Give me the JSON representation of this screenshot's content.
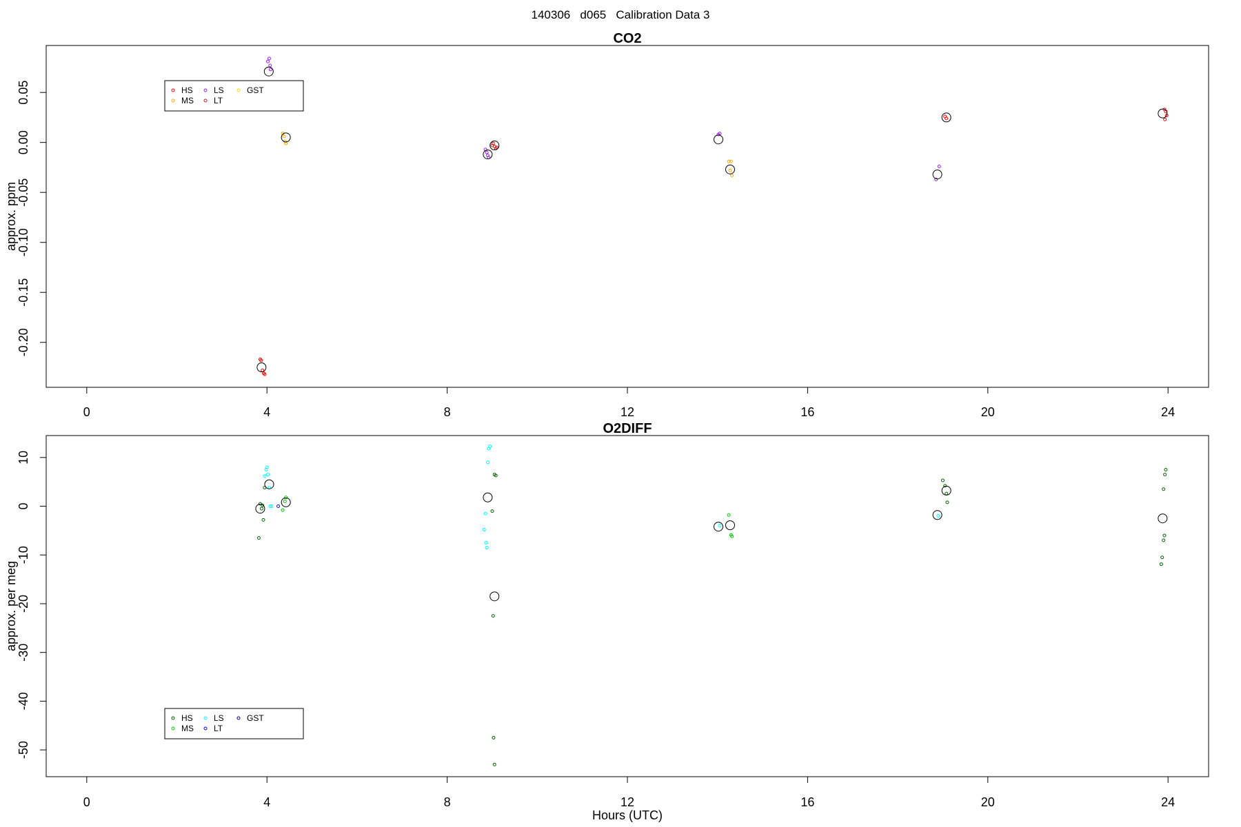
{
  "figure_title": "140306   d065   Calibration Data 3",
  "chart_data": [
    {
      "type": "scatter",
      "title": "CO2",
      "xlabel": "",
      "ylabel": "approx. ppm",
      "xlim": [
        -0.9,
        24.9
      ],
      "ylim": [
        -0.245,
        0.097
      ],
      "x_ticks": [
        0,
        4,
        8,
        12,
        16,
        20,
        24
      ],
      "y_ticks": [
        -0.2,
        -0.15,
        -0.1,
        -0.05,
        0.0,
        0.05
      ],
      "y_tick_labels": [
        "-0.20",
        "-0.15",
        "-0.10",
        "-0.05",
        "0.00",
        "0.05"
      ],
      "legend": {
        "placement": "top-left",
        "entries": [
          {
            "name": "HS",
            "color": "#ff0000"
          },
          {
            "name": "MS",
            "color": "#ffa500"
          },
          {
            "name": "LS",
            "color": "#a020f0"
          },
          {
            "name": "LT",
            "color": "#b22222"
          },
          {
            "name": "GST",
            "color": "#ffd700"
          }
        ]
      },
      "series": [
        {
          "name": "HS",
          "color": "#ff0000",
          "points": [
            [
              3.85,
              -0.217
            ],
            [
              3.87,
              -0.218
            ],
            [
              3.9,
              -0.228
            ],
            [
              3.93,
              -0.231
            ],
            [
              3.95,
              -0.232
            ],
            [
              9.02,
              -0.001
            ],
            [
              9.05,
              -0.004
            ],
            [
              9.08,
              -0.006
            ],
            [
              19.05,
              0.026
            ],
            [
              19.08,
              0.024
            ],
            [
              23.92,
              0.033
            ],
            [
              23.95,
              0.031
            ],
            [
              23.97,
              0.027
            ],
            [
              23.93,
              0.023
            ]
          ]
        },
        {
          "name": "MS",
          "color": "#ffa500",
          "points": [
            [
              4.35,
              0.009
            ],
            [
              4.38,
              0.006
            ],
            [
              4.4,
              0.001
            ],
            [
              4.42,
              -0.001
            ],
            [
              14.25,
              -0.019
            ],
            [
              14.3,
              -0.019
            ],
            [
              14.28,
              -0.028
            ],
            [
              14.32,
              -0.033
            ]
          ]
        },
        {
          "name": "LS",
          "color": "#a020f0",
          "points": [
            [
              4.02,
              0.081
            ],
            [
              4.05,
              0.084
            ],
            [
              4.07,
              0.077
            ],
            [
              4.08,
              0.073
            ],
            [
              8.85,
              -0.007
            ],
            [
              8.88,
              -0.01
            ],
            [
              8.9,
              -0.013
            ],
            [
              8.92,
              -0.015
            ],
            [
              14.02,
              0.008
            ],
            [
              14.05,
              0.009
            ],
            [
              18.85,
              -0.037
            ],
            [
              18.92,
              -0.024
            ]
          ]
        },
        {
          "name": "LT",
          "color": "#b22222",
          "points": [
            [
              9.0,
              -0.003
            ],
            [
              9.1,
              -0.005
            ]
          ]
        },
        {
          "name": "GST",
          "color": "#ffd700",
          "points": []
        },
        {
          "name": "",
          "color": "#000000",
          "marker": "mean",
          "points": [
            [
              3.88,
              -0.225
            ],
            [
              4.04,
              0.071
            ],
            [
              4.42,
              0.005
            ],
            [
              8.9,
              -0.012
            ],
            [
              9.05,
              -0.003
            ],
            [
              14.02,
              0.003
            ],
            [
              14.28,
              -0.027
            ],
            [
              18.88,
              -0.032
            ],
            [
              19.08,
              0.025
            ],
            [
              23.88,
              0.029
            ]
          ]
        }
      ]
    },
    {
      "type": "scatter",
      "title": "O2DIFF",
      "xlabel": "Hours (UTC)",
      "ylabel": "approx. per meg",
      "xlim": [
        -0.9,
        24.9
      ],
      "ylim": [
        -55.5,
        14.5
      ],
      "x_ticks": [
        0,
        4,
        8,
        12,
        16,
        20,
        24
      ],
      "y_ticks": [
        -50,
        -40,
        -30,
        -20,
        -10,
        0,
        10
      ],
      "y_tick_labels": [
        "-50",
        "-40",
        "-30",
        "-20",
        "-10",
        "0",
        "10"
      ],
      "legend": {
        "placement": "bottom-left",
        "entries": [
          {
            "name": "HS",
            "color": "#006400"
          },
          {
            "name": "MS",
            "color": "#00cc00"
          },
          {
            "name": "LS",
            "color": "#00ffff"
          },
          {
            "name": "LT",
            "color": "#0000ff"
          },
          {
            "name": "GST",
            "color": "#00008b"
          }
        ]
      },
      "series": [
        {
          "name": "HS",
          "color": "#006400",
          "points": [
            [
              3.82,
              -6.5
            ],
            [
              3.85,
              0.5
            ],
            [
              3.88,
              -0.5
            ],
            [
              3.9,
              0.2
            ],
            [
              3.92,
              -2.8
            ],
            [
              3.95,
              3.8
            ],
            [
              9.0,
              -1.0
            ],
            [
              9.05,
              6.5
            ],
            [
              9.08,
              6.3
            ],
            [
              9.02,
              -22.5
            ],
            [
              9.03,
              -47.5
            ],
            [
              9.05,
              -53.0
            ],
            [
              19.0,
              5.3
            ],
            [
              19.05,
              4.2
            ],
            [
              19.08,
              2.6
            ],
            [
              19.1,
              0.8
            ],
            [
              23.85,
              -11.9
            ],
            [
              23.87,
              -10.5
            ],
            [
              23.9,
              -7.0
            ],
            [
              23.92,
              -6.0
            ],
            [
              23.95,
              7.5
            ],
            [
              23.93,
              6.5
            ],
            [
              23.9,
              3.5
            ]
          ]
        },
        {
          "name": "MS",
          "color": "#00cc00",
          "points": [
            [
              4.35,
              -0.8
            ],
            [
              4.4,
              1.0
            ],
            [
              4.42,
              1.8
            ],
            [
              14.25,
              -1.8
            ],
            [
              14.3,
              -5.9
            ],
            [
              14.32,
              -6.2
            ]
          ]
        },
        {
          "name": "LS",
          "color": "#00ffff",
          "points": [
            [
              3.95,
              6.2
            ],
            [
              3.98,
              7.5
            ],
            [
              4.0,
              8.0
            ],
            [
              4.02,
              6.5
            ],
            [
              4.05,
              3.8
            ],
            [
              4.07,
              0.0
            ],
            [
              4.1,
              0.0
            ],
            [
              8.82,
              -4.8
            ],
            [
              8.85,
              -1.5
            ],
            [
              8.86,
              -7.5
            ],
            [
              8.88,
              -8.5
            ],
            [
              8.9,
              9.0
            ],
            [
              8.92,
              11.8
            ],
            [
              8.95,
              12.3
            ],
            [
              14.05,
              -4.0
            ],
            [
              18.9,
              -2.0
            ]
          ]
        },
        {
          "name": "LT",
          "color": "#0000ff",
          "points": [
            [
              4.25,
              0.0
            ]
          ]
        },
        {
          "name": "GST",
          "color": "#00008b",
          "points": []
        },
        {
          "name": "",
          "color": "#000000",
          "marker": "mean",
          "points": [
            [
              3.85,
              -0.5
            ],
            [
              4.05,
              4.5
            ],
            [
              4.42,
              0.8
            ],
            [
              8.9,
              1.8
            ],
            [
              9.05,
              -18.5
            ],
            [
              14.02,
              -4.2
            ],
            [
              14.28,
              -3.9
            ],
            [
              18.88,
              -1.8
            ],
            [
              19.08,
              3.2
            ],
            [
              23.88,
              -2.5
            ]
          ]
        }
      ]
    }
  ]
}
